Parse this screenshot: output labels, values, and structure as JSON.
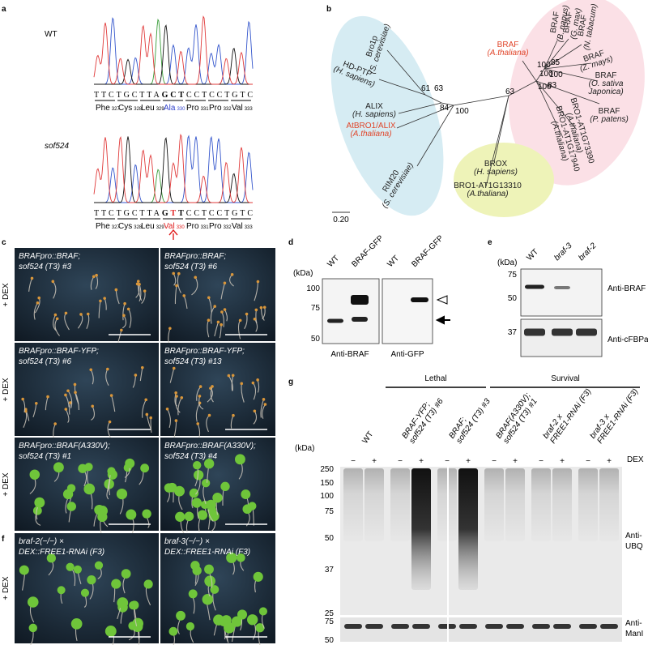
{
  "a": {
    "letter": "a",
    "wt_label": "WT",
    "mut_label": "sof524",
    "wt_seq": [
      "TTCTGCTTA",
      "GCT",
      "CCTCCTGTC"
    ],
    "mut_seq": [
      "TTCTGCTTA",
      "G",
      "T",
      "T",
      "CCTCCTGTC"
    ],
    "wt_res": [
      [
        "Phe",
        "327"
      ],
      [
        "Cys",
        "328"
      ],
      [
        "Leu",
        "329"
      ],
      [
        "Ala",
        "330"
      ],
      [
        "Pro",
        "331"
      ],
      [
        "Pro",
        "332"
      ],
      [
        "Val",
        "333"
      ]
    ],
    "mut_res": [
      [
        "Phe",
        "327"
      ],
      [
        "Cys",
        "328"
      ],
      [
        "Leu",
        "329"
      ],
      [
        "Val",
        "330"
      ],
      [
        "Pro",
        "331"
      ],
      [
        "Pro",
        "332"
      ],
      [
        "Val",
        "333"
      ]
    ]
  },
  "b": {
    "letter": "b",
    "labels": [
      {
        "lines": [
          "Bro1p",
          "(S. cerevisiae)"
        ]
      },
      {
        "lines": [
          "HD-PTP",
          "(H. sapiens)"
        ]
      },
      {
        "lines": [
          "ALIX",
          "(H. sapiens)"
        ]
      },
      {
        "lines": [
          "AtBRO1/ALIX",
          "(A.thaliana)"
        ]
      },
      {
        "lines": [
          "RIM20",
          "(S. cerevisiae)"
        ]
      },
      {
        "lines": [
          "BROX",
          "(H. sapiens)"
        ]
      },
      {
        "lines": [
          "BRO1-AT1G13310",
          "(A.thaliana)"
        ]
      },
      {
        "lines": [
          "BRAF",
          "(A.thaliana)"
        ]
      },
      {
        "lines": [
          "BRAF",
          "(B. napus)"
        ]
      },
      {
        "lines": [
          "BRAF",
          "(G. max)"
        ]
      },
      {
        "lines": [
          "BRAF",
          "(N. tabacum)"
        ]
      },
      {
        "lines": [
          "BRAF",
          "(Z. mays)"
        ]
      },
      {
        "lines": [
          "BRAF",
          "(O. sativa",
          "Japonica)"
        ]
      },
      {
        "lines": [
          "BRAF",
          "(P. patens)"
        ]
      },
      {
        "lines": [
          "BRO1-AT1G73390",
          "(A.thaliana)"
        ]
      },
      {
        "lines": [
          "BRO1-AT1G17940",
          "(A.thaliana)"
        ]
      }
    ],
    "bootstrap": [
      "61",
      "63",
      "84",
      "100",
      "63",
      "100",
      "100",
      "85",
      "100",
      "100",
      "83"
    ],
    "scale": "0.20"
  },
  "c": {
    "letter": "c",
    "dex": "+ DEX",
    "photos": [
      [
        "BRAFpro::BRAF;",
        "sof524 (T3) #3"
      ],
      [
        "BRAFpro::BRAF;",
        "sof524 (T3) #6"
      ],
      [
        "BRAFpro::BRAF-YFP;",
        "sof524 (T3) #6"
      ],
      [
        "BRAFpro::BRAF-YFP;",
        "sof524 (T3) #13"
      ],
      [
        "BRAFpro::BRAF(A330V);",
        "sof524 (T3) #1"
      ],
      [
        "BRAFpro::BRAF(A330V);",
        "sof524 (T3) #4"
      ]
    ]
  },
  "d": {
    "letter": "d",
    "unit": "(kDa)",
    "lanes": [
      "WT",
      "BRAF-GFP",
      "WT",
      "BRAF-GFP"
    ],
    "markers": [
      "100",
      "75",
      "50"
    ],
    "antibodies": [
      "Anti-BRAF",
      "Anti-GFP"
    ]
  },
  "e": {
    "letter": "e",
    "unit": "(kDa)",
    "lanes": [
      "WT",
      "braf-3",
      "braf-2"
    ],
    "markers": [
      "75",
      "50",
      "37"
    ],
    "antibodies": [
      "Anti-BRAF",
      "Anti-cFBPase"
    ]
  },
  "f": {
    "letter": "f",
    "dex": "+ DEX",
    "photos": [
      [
        "braf-2(−/−) ×",
        "DEX::FREE1-RNAi (F3)"
      ],
      [
        "braf-3(−/−) ×",
        "DEX::FREE1-RNAi (F3)"
      ]
    ]
  },
  "g": {
    "letter": "g",
    "lethal": "Lethal",
    "survival": "Survival",
    "unit": "(kDa)",
    "dex": "DEX",
    "signs": [
      "−",
      "+"
    ],
    "groups": [
      [
        "WT"
      ],
      [
        "BRAF-YFP;",
        "sof524 (T3) #6"
      ],
      [
        "BRAF;",
        "sof524 (T3) #3"
      ],
      [
        "BRAF(A330V);",
        "sof524 (T3) #1"
      ],
      [
        "braf-2 x",
        "FREE1-RNAi (F3)"
      ],
      [
        "braf-3 x",
        "FREE1-RNAi (F3)"
      ]
    ],
    "markers": [
      "250",
      "150",
      "100",
      "75",
      "50",
      "37",
      "25"
    ],
    "markers2": [
      "75",
      "50"
    ],
    "antibody1": [
      "Anti-",
      "UBQ"
    ],
    "antibody2": [
      "Anti-",
      "ManI"
    ]
  }
}
